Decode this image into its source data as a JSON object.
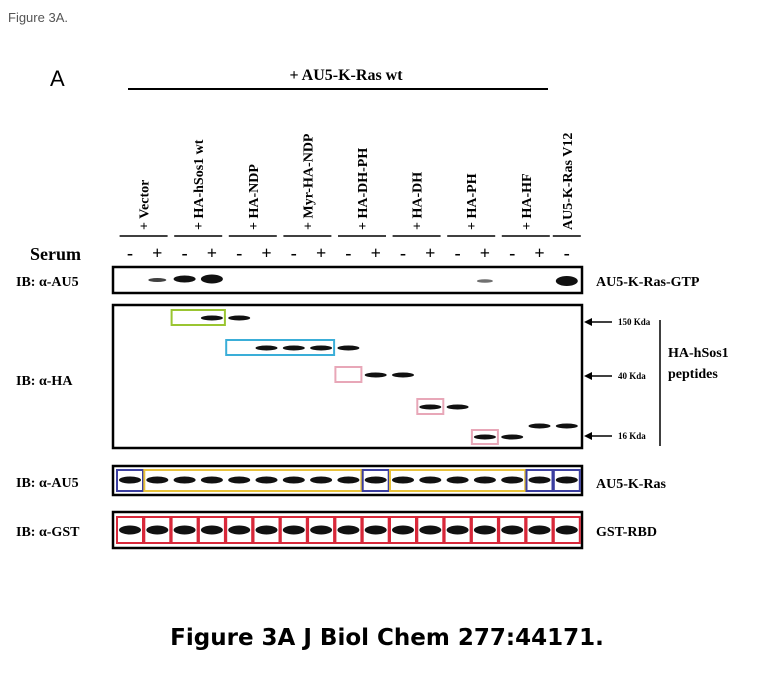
{
  "header": {
    "title": "Figure 3A."
  },
  "figure": {
    "panel_letter": "A",
    "treatment": "+ AU5-K-Ras wt",
    "lane_labels": [
      "+ Vector",
      "+ HA-hSos1 wt",
      "+ HA-NDP",
      "+ Myr-HA-NDP",
      "+ HA-DH-PH",
      "+ HA-DH",
      "+ HA-PH",
      "+ HA-HF",
      "AU5-K-Ras V12"
    ],
    "serum_label": "Serum",
    "serum": [
      "-",
      "+",
      "-",
      "+",
      "-",
      "+",
      "-",
      "+",
      "-",
      "+",
      "-",
      "+",
      "-",
      "+",
      "-",
      "+",
      "-"
    ],
    "blots": [
      {
        "antibody": "IB: α-AU5",
        "product": "AU5-K-Ras-GTP"
      },
      {
        "antibody": "IB: α-HA",
        "product": "HA-hSos1 peptides"
      },
      {
        "antibody": "IB: α-AU5",
        "product": "AU5-K-Ras"
      },
      {
        "antibody": "IB: α-GST",
        "product": "GST-RBD"
      }
    ],
    "markers": [
      "150 Kda",
      "40 Kda",
      "16 Kda"
    ]
  },
  "caption": "Figure 3A J Biol Chem 277:44171."
}
